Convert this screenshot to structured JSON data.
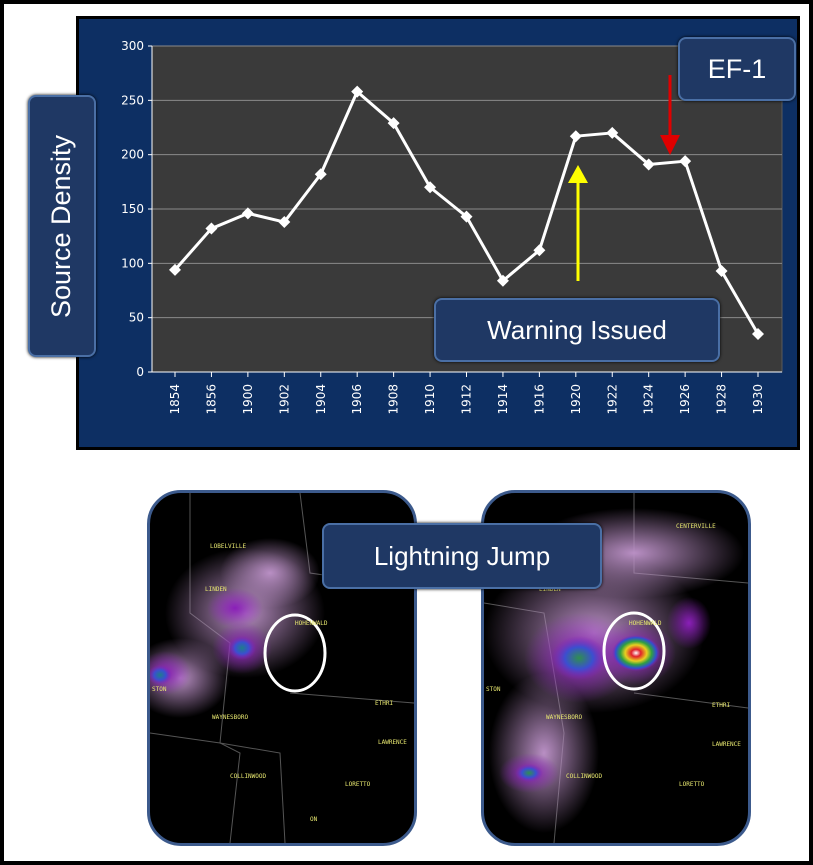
{
  "chart_data": {
    "type": "line",
    "ylabel": "Source Density",
    "ylim": [
      0,
      300
    ],
    "yticks": [
      0,
      50,
      100,
      150,
      200,
      250,
      300
    ],
    "x_tick_labels": [
      "1854",
      "1856",
      "1900",
      "1902",
      "1904",
      "1906",
      "1908",
      "1910",
      "1912",
      "1914",
      "1916",
      "1920",
      "1922",
      "1924",
      "1926",
      "1928",
      "1930"
    ],
    "series": [
      {
        "values": [
          94,
          132,
          146,
          138,
          182,
          258,
          229,
          170,
          143,
          84,
          112,
          217,
          220,
          191,
          194,
          93,
          35
        ],
        "color": "#ffffff"
      }
    ],
    "annotations": {
      "ef1": "EF-1",
      "warning": "Warning Issued"
    },
    "grid": true,
    "background": "#3a3a3a",
    "panel_color": "#0d2f63"
  },
  "radar": {
    "label": "Lightning Jump",
    "left_towns": [
      "LOBELVILLE",
      "LINDEN",
      "HOHENWALD",
      "ETHRI",
      "LAWRENCE",
      "WAYNESBORO",
      "COLLINWOOD",
      "LORETTO",
      "ON",
      "STON"
    ],
    "right_towns": [
      "CENTERVILLE",
      "LINDEN",
      "HOHENWALD",
      "WAYNESBORO",
      "ETHRI",
      "LAWRENCE",
      "COLLINWOOD",
      "LORETTO",
      "STON"
    ]
  }
}
